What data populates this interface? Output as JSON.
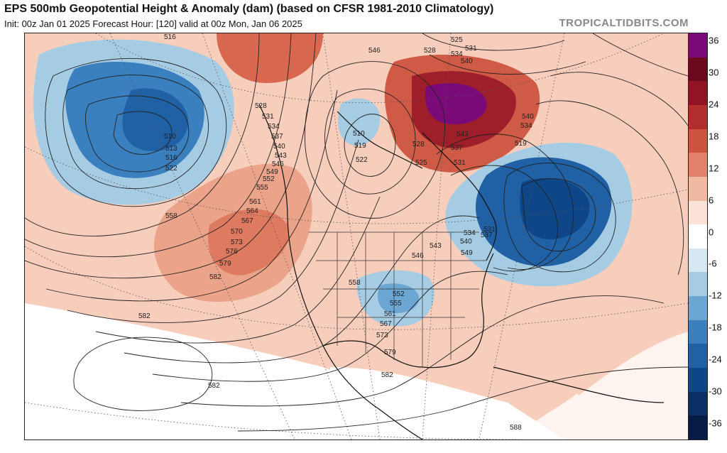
{
  "header": {
    "title": "EPS 500mb Geopotential Height & Anomaly (dam) (based on CFSR 1981-2010 Climatology)",
    "subtitle": "Init: 00z Jan 01 2025   Forecast Hour: [120]   valid at 00z Mon, Jan 06 2025",
    "brand": "TROPICALTIDBITS.COM"
  },
  "colorbar": {
    "ticks": [
      "36",
      "30",
      "24",
      "18",
      "12",
      "6",
      "0",
      "-6",
      "-12",
      "-18",
      "-24",
      "-30",
      "-36"
    ],
    "colors": [
      "#7a0a78",
      "#6b0a1f",
      "#8f1525",
      "#b22d2d",
      "#cc5540",
      "#e0836a",
      "#f2b9a2",
      "#fbe3d8",
      "#ffffff",
      "#d6e7f2",
      "#a6cce4",
      "#6ca6d2",
      "#3a7fbe",
      "#2060a4",
      "#0e4687",
      "#0a2f66",
      "#061c45"
    ]
  },
  "contour_labels": [
    {
      "text": "516"
    },
    {
      "text": "510"
    },
    {
      "text": "513"
    },
    {
      "text": "516"
    },
    {
      "text": "522"
    },
    {
      "text": "558"
    },
    {
      "text": "528"
    },
    {
      "text": "531"
    },
    {
      "text": "534"
    },
    {
      "text": "537"
    },
    {
      "text": "540"
    },
    {
      "text": "543"
    },
    {
      "text": "546"
    },
    {
      "text": "549"
    },
    {
      "text": "552"
    },
    {
      "text": "555"
    },
    {
      "text": "561"
    },
    {
      "text": "564"
    },
    {
      "text": "567"
    },
    {
      "text": "570"
    },
    {
      "text": "573"
    },
    {
      "text": "576"
    },
    {
      "text": "579"
    },
    {
      "text": "582"
    },
    {
      "text": "582"
    },
    {
      "text": "582"
    },
    {
      "text": "510"
    },
    {
      "text": "519"
    },
    {
      "text": "522"
    },
    {
      "text": "546"
    },
    {
      "text": "525"
    },
    {
      "text": "528"
    },
    {
      "text": "531"
    },
    {
      "text": "534"
    },
    {
      "text": "540"
    },
    {
      "text": "543"
    },
    {
      "text": "528"
    },
    {
      "text": "525"
    },
    {
      "text": "537"
    },
    {
      "text": "531"
    },
    {
      "text": "540"
    },
    {
      "text": "534"
    },
    {
      "text": "519"
    },
    {
      "text": "531"
    },
    {
      "text": "534"
    },
    {
      "text": "537"
    },
    {
      "text": "540"
    },
    {
      "text": "543"
    },
    {
      "text": "546"
    },
    {
      "text": "549"
    },
    {
      "text": "558"
    },
    {
      "text": "552"
    },
    {
      "text": "555"
    },
    {
      "text": "561"
    },
    {
      "text": "567"
    },
    {
      "text": "573"
    },
    {
      "text": "579"
    },
    {
      "text": "582"
    },
    {
      "text": "588"
    }
  ]
}
